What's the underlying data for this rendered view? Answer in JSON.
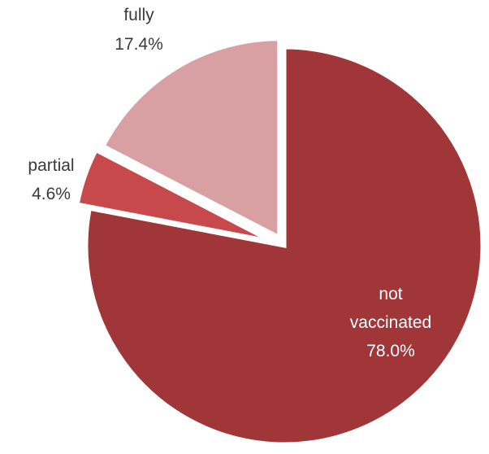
{
  "chart_data": {
    "type": "pie",
    "title": "",
    "slices": [
      {
        "name": "not vaccinated",
        "label_lines": [
          "not",
          "vaccinated",
          "78.0%"
        ],
        "value": 78.0,
        "color": "#a03638",
        "label_color": "#ffffff"
      },
      {
        "name": "partial",
        "label_lines": [
          "partial",
          "4.6%"
        ],
        "value": 4.6,
        "color": "#c8494b",
        "label_color": "#3a3a3a"
      },
      {
        "name": "fully",
        "label_lines": [
          "fully",
          "17.4%"
        ],
        "value": 17.4,
        "color": "#d9a0a3",
        "label_color": "#3a3a3a"
      }
    ],
    "start": "12 o'clock",
    "direction": "clockwise",
    "legend": "none"
  }
}
